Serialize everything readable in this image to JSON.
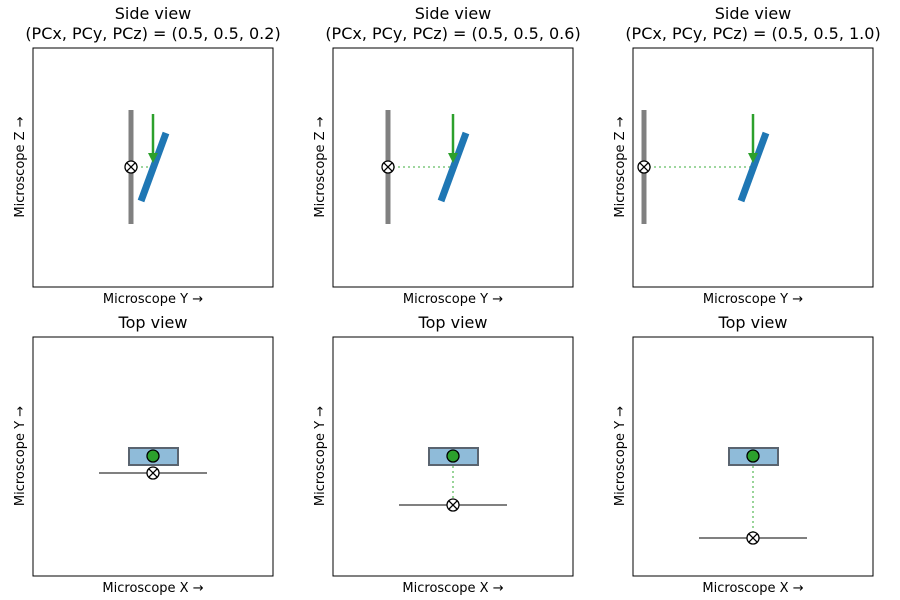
{
  "figure": {
    "side_view_title": "Side view",
    "top_view_title": "Top view",
    "side_xlabel": "Microscope Y →",
    "side_ylabel": "Microscope Z →",
    "top_xlabel": "Microscope X →",
    "top_ylabel": "Microscope Y →",
    "panels": [
      {
        "subtitle": "(PCx, PCy, PCz) = (0.5, 0.5, 0.2)",
        "pcz": 0.2
      },
      {
        "subtitle": "(PCx, PCy, PCz) = (0.5, 0.5, 0.6)",
        "pcz": 0.6
      },
      {
        "subtitle": "(PCx, PCy, PCz) = (0.5, 0.5, 1.0)",
        "pcz": 1.0
      }
    ]
  },
  "colors": {
    "detector": "#808080",
    "sample": "#1f77b4",
    "sample_top_fill": "#8fbbd9",
    "sample_top_edge": "#5a6470",
    "beam": "#2ca02c",
    "projection_line": "#7fc97f",
    "frame": "#000000"
  }
}
